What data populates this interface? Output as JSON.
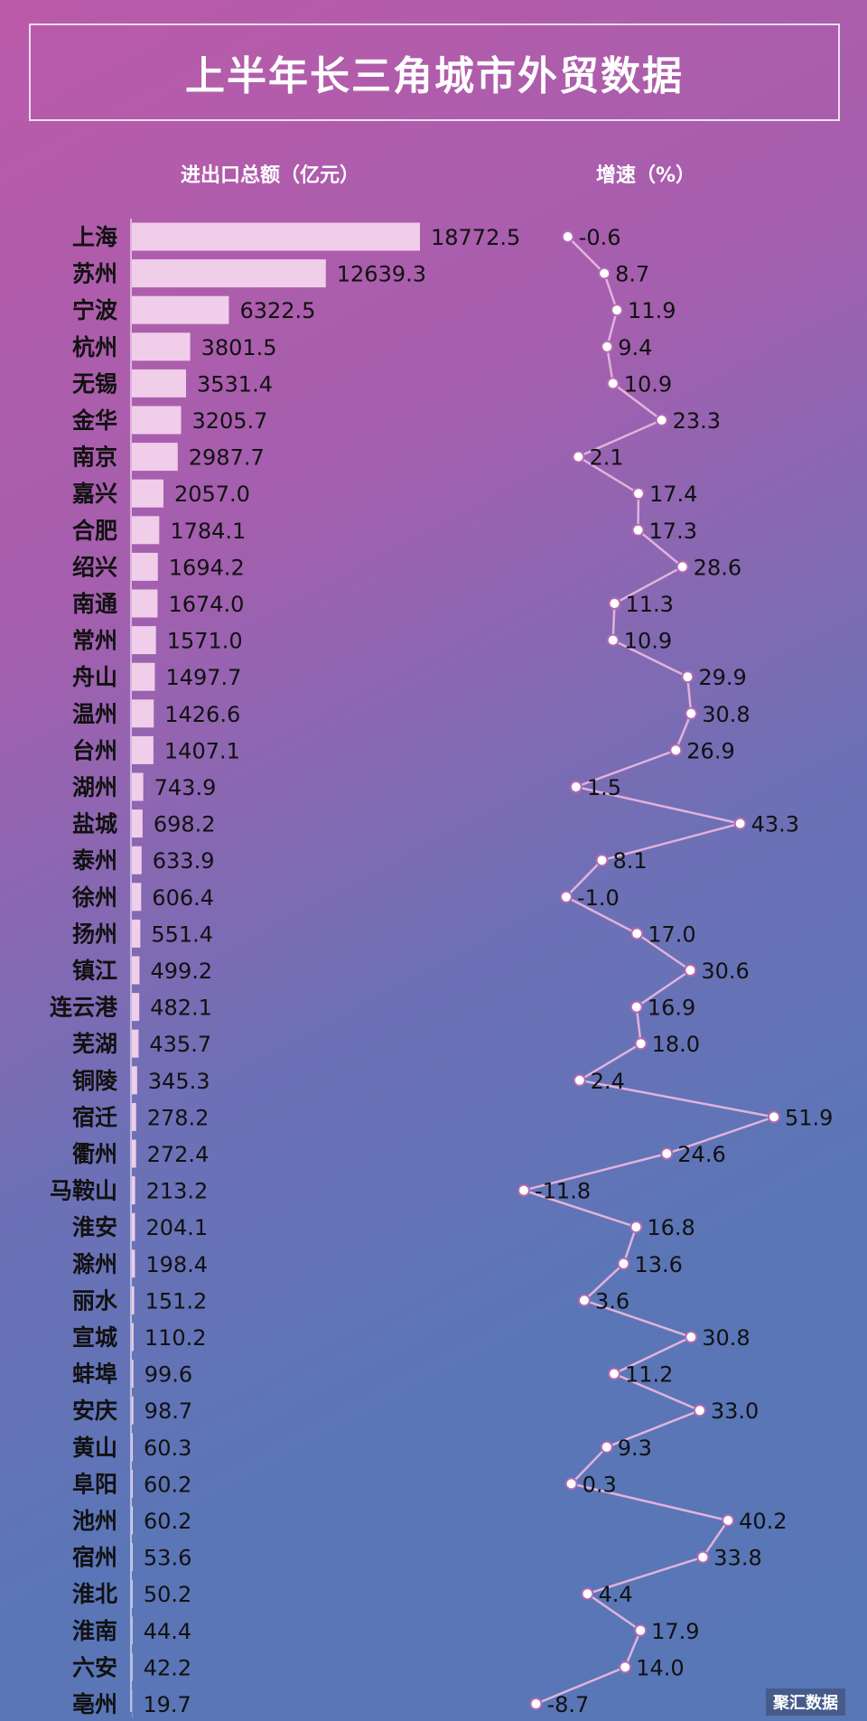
{
  "title": "上半年长三角城市外贸数据",
  "header_left": "进出口总额（亿元）",
  "header_right": "增速（%）",
  "watermark": "聚汇数据",
  "colors": {
    "bar": "#f0cde9",
    "line": "#e2b2dc",
    "text": "#111111",
    "dot_fill": "#ffffff",
    "dot_stroke": "#b36ab2"
  },
  "chart_data": {
    "type": "bar",
    "categories": [
      "上海",
      "苏州",
      "宁波",
      "杭州",
      "无锡",
      "金华",
      "南京",
      "嘉兴",
      "合肥",
      "绍兴",
      "南通",
      "常州",
      "舟山",
      "温州",
      "台州",
      "湖州",
      "盐城",
      "泰州",
      "徐州",
      "扬州",
      "镇江",
      "连云港",
      "芜湖",
      "铜陵",
      "宿迁",
      "衢州",
      "马鞍山",
      "淮安",
      "滁州",
      "丽水",
      "宣城",
      "蚌埠",
      "安庆",
      "黄山",
      "阜阳",
      "池州",
      "宿州",
      "淮北",
      "淮南",
      "六安",
      "亳州"
    ],
    "series": [
      {
        "name": "进出口总额（亿元）",
        "type": "bar",
        "values": [
          18772.5,
          12639.3,
          6322.5,
          3801.5,
          3531.4,
          3205.7,
          2987.7,
          2057.0,
          1784.1,
          1694.2,
          1674.0,
          1571.0,
          1497.7,
          1426.6,
          1407.1,
          743.9,
          698.2,
          633.9,
          606.4,
          551.4,
          499.2,
          482.1,
          435.7,
          345.3,
          278.2,
          272.4,
          213.2,
          204.1,
          198.4,
          151.2,
          110.2,
          99.6,
          98.7,
          60.3,
          60.2,
          60.2,
          53.6,
          50.2,
          44.4,
          42.2,
          19.7
        ],
        "labels": [
          "18772.5",
          "12639.3",
          "6322.5",
          "3801.5",
          "3531.4",
          "3205.7",
          "2987.7",
          "2057.0",
          "1784.1",
          "1694.2",
          "1674.0",
          "1571.0",
          "1497.7",
          "1426.6",
          "1407.1",
          "743.9",
          "698.2",
          "633.9",
          "606.4",
          "551.4",
          "499.2",
          "482.1",
          "435.7",
          "345.3",
          "278.2",
          "272.4",
          "213.2",
          "204.1",
          "198.4",
          "151.2",
          "110.2",
          "99.6",
          "98.7",
          "60.3",
          "60.2",
          "60.2",
          "53.6",
          "50.2",
          "44.4",
          "42.2",
          "19.7"
        ]
      },
      {
        "name": "增速（%）",
        "type": "line",
        "values": [
          -0.6,
          8.7,
          11.9,
          9.4,
          10.9,
          23.3,
          2.1,
          17.4,
          17.3,
          28.6,
          11.3,
          10.9,
          29.9,
          30.8,
          26.9,
          1.5,
          43.3,
          8.1,
          -1.0,
          17.0,
          30.6,
          16.9,
          18.0,
          2.4,
          51.9,
          24.6,
          -11.8,
          16.8,
          13.6,
          3.6,
          30.8,
          11.2,
          33.0,
          9.3,
          0.3,
          40.2,
          33.8,
          4.4,
          17.9,
          14.0,
          -8.7
        ],
        "labels": [
          "-0.6",
          "8.7",
          "11.9",
          "9.4",
          "10.9",
          "23.3",
          "2.1",
          "17.4",
          "17.3",
          "28.6",
          "11.3",
          "10.9",
          "29.9",
          "30.8",
          "26.9",
          "1.5",
          "43.3",
          "8.1",
          "-1.0",
          "17.0",
          "30.6",
          "16.9",
          "18.0",
          "2.4",
          "51.9",
          "24.6",
          "-11.8",
          "16.8",
          "13.6",
          "3.6",
          "30.8",
          "11.2",
          "33.0",
          "9.3",
          "0.3",
          "40.2",
          "33.8",
          "4.4",
          "17.9",
          "14.0",
          "-8.7"
        ]
      }
    ],
    "bar_xlim": [
      0,
      18772.5
    ],
    "line_xlim": [
      -11.8,
      51.9
    ]
  }
}
